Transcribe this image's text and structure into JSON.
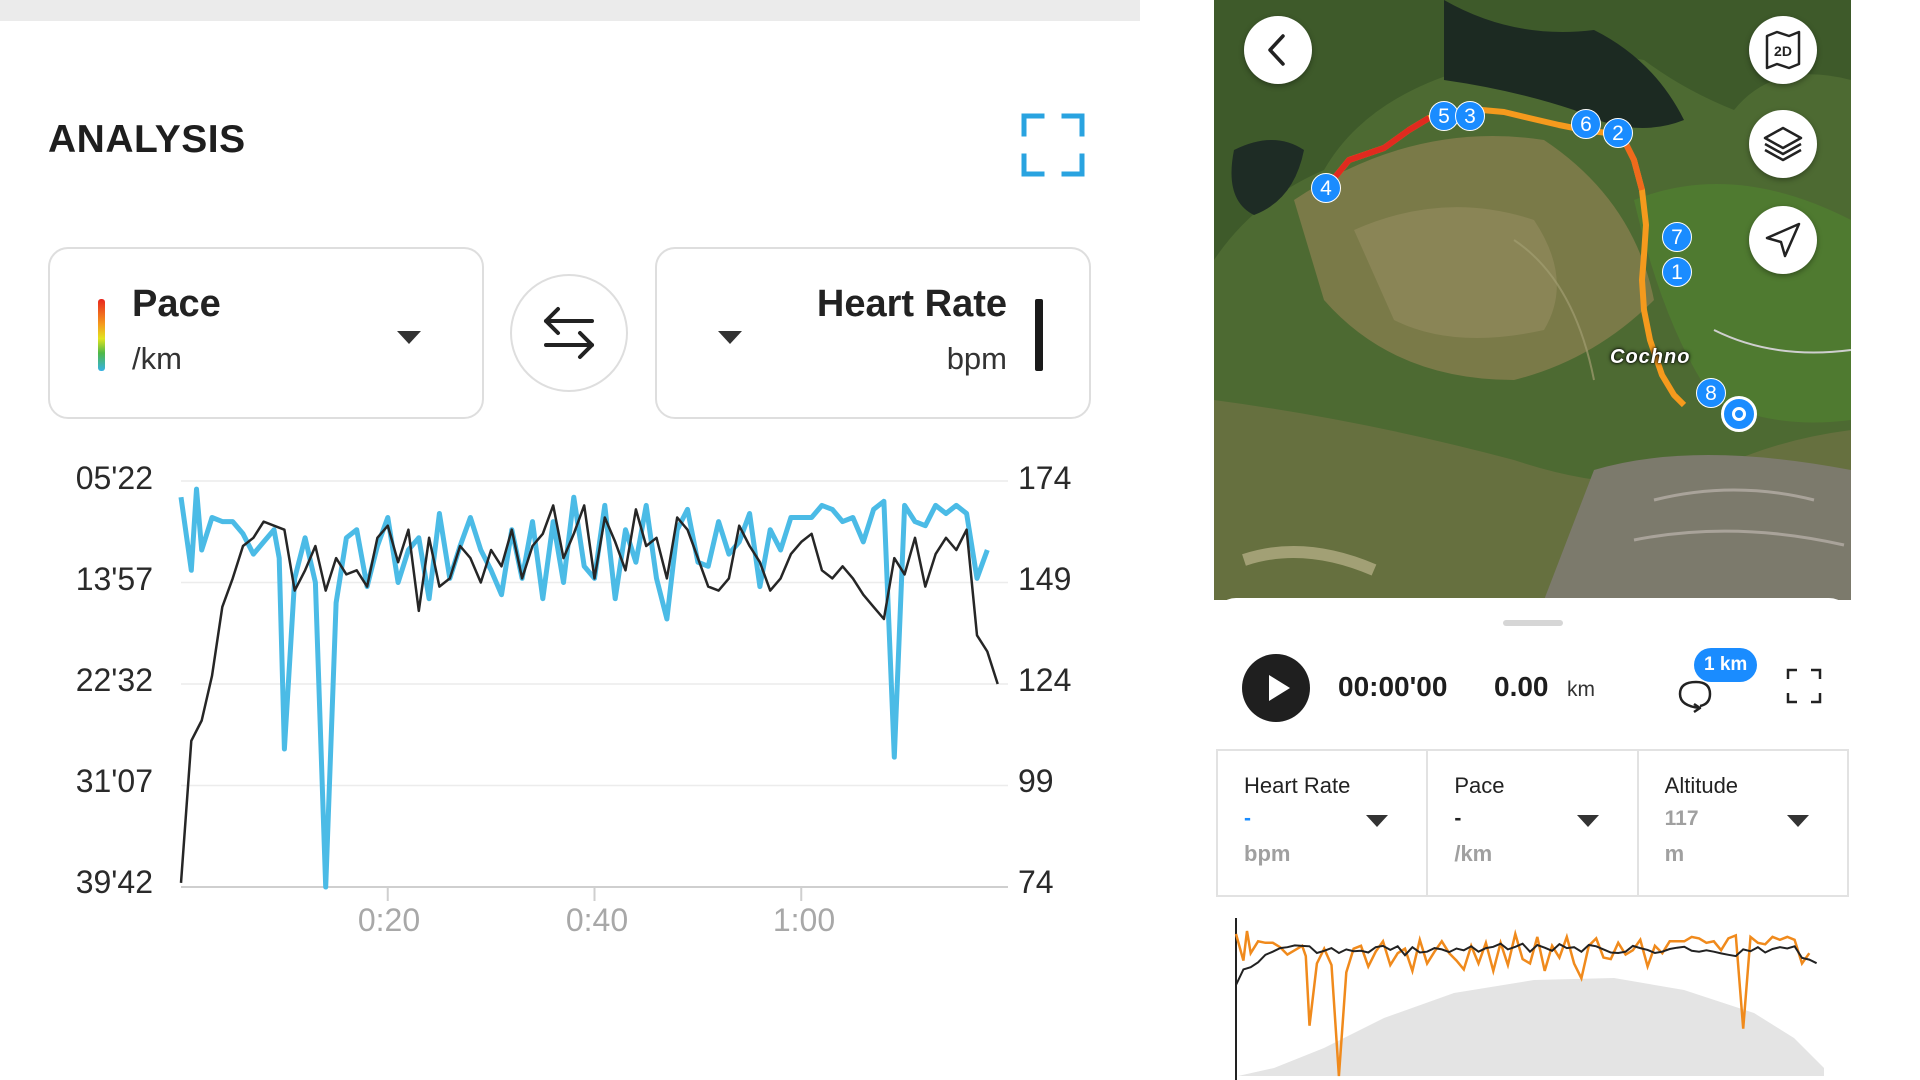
{
  "analysis": {
    "title": "ANALYSIS",
    "fullscreen_icon": "expand-icon"
  },
  "pace_selector": {
    "title": "Pace",
    "unit": "/km"
  },
  "hr_selector": {
    "title": "Heart Rate",
    "unit": "bpm"
  },
  "swap_icon": "swap-arrows-icon",
  "chart_data": {
    "type": "line",
    "title": "",
    "xlabel": "",
    "ylabel_left": "Pace (/km)",
    "ylabel_right": "Heart Rate (bpm)",
    "x_ticks": [
      "0:20",
      "0:40",
      "1:00"
    ],
    "y_ticks_left": [
      "05'22",
      "13'57",
      "22'32",
      "31'07",
      "39'42"
    ],
    "y_ticks_right": [
      "174",
      "149",
      "124",
      "99",
      "74"
    ],
    "xlim_minutes": [
      0,
      80
    ],
    "ylim_right": [
      74,
      174
    ],
    "grid": true,
    "series": [
      {
        "name": "Pace",
        "color": "#4bbbe6",
        "x": [
          0,
          1,
          1.5,
          2,
          3,
          4,
          5,
          6,
          7,
          8,
          9,
          9.5,
          10,
          11,
          12,
          13,
          14,
          15,
          16,
          17,
          18,
          19,
          20,
          21,
          22,
          23,
          24,
          25,
          26,
          27,
          28,
          29,
          30,
          31,
          32,
          33,
          34,
          35,
          36,
          37,
          38,
          39,
          40,
          41,
          42,
          43,
          44,
          45,
          46,
          47,
          48,
          49,
          50,
          51,
          52,
          53,
          54,
          55,
          56,
          57,
          58,
          59,
          60,
          61,
          62,
          63,
          64,
          65,
          66,
          67,
          68,
          69,
          70,
          71,
          72,
          73,
          74,
          75,
          76,
          77,
          78
        ],
        "values": [
          170,
          152,
          172,
          157,
          165,
          164,
          164,
          161,
          156,
          159,
          162,
          155,
          108,
          150,
          160,
          149,
          74,
          144,
          160,
          162,
          148,
          158,
          165,
          149,
          157,
          160,
          145,
          166,
          150,
          158,
          165,
          157,
          152,
          146,
          162,
          150,
          164,
          145,
          164,
          149,
          170,
          153,
          150,
          168,
          145,
          162,
          154,
          168,
          150,
          140,
          162,
          167,
          154,
          153,
          164,
          156,
          159,
          166,
          148,
          162,
          157,
          165,
          165,
          165,
          168,
          167,
          164,
          165,
          159,
          167,
          169,
          106,
          168,
          164,
          163,
          168,
          166,
          168,
          166,
          150,
          157
        ]
      },
      {
        "name": "Heart Rate",
        "color": "#262626",
        "x": [
          0,
          1,
          2,
          3,
          4,
          5,
          6,
          7,
          8,
          9,
          10,
          11,
          12,
          13,
          14,
          15,
          16,
          17,
          18,
          19,
          20,
          21,
          22,
          23,
          24,
          25,
          26,
          27,
          28,
          29,
          30,
          31,
          32,
          33,
          34,
          35,
          36,
          37,
          38,
          39,
          40,
          41,
          42,
          43,
          44,
          45,
          46,
          47,
          48,
          49,
          50,
          51,
          52,
          53,
          54,
          55,
          56,
          57,
          58,
          59,
          60,
          61,
          62,
          63,
          64,
          65,
          66,
          67,
          68,
          69,
          70,
          71,
          72,
          73,
          74,
          75,
          76,
          77,
          78,
          79
        ],
        "values": [
          75,
          110,
          115,
          126,
          143,
          150,
          158,
          160,
          164,
          163,
          162,
          147,
          152,
          158,
          147,
          155,
          151,
          152,
          148,
          160,
          163,
          154,
          162,
          142,
          160,
          148,
          150,
          158,
          155,
          149,
          157,
          153,
          162,
          150,
          158,
          161,
          168,
          155,
          161,
          168,
          150,
          165,
          159,
          152,
          167,
          158,
          160,
          150,
          165,
          162,
          155,
          148,
          147,
          150,
          163,
          158,
          154,
          147,
          150,
          156,
          159,
          161,
          152,
          150,
          153,
          150,
          146,
          143,
          140,
          155,
          151,
          160,
          148,
          156,
          160,
          157,
          162,
          136,
          132,
          124
        ]
      }
    ]
  },
  "map": {
    "back_icon": "chevron-left-icon",
    "view_2d_icon": "map-2d-icon",
    "view_2d_label": "2D",
    "layers_icon": "layers-icon",
    "locate_icon": "navigation-arrow-icon",
    "place_label": "Cochno",
    "lap_markers": [
      "5",
      "3",
      "6",
      "2",
      "4",
      "7",
      "1",
      "8"
    ]
  },
  "playback": {
    "play_icon": "play-icon",
    "time": "00:00'00",
    "distance": "0.00",
    "distance_unit": "km",
    "lap_icon": "lap-loop-icon",
    "lap_badge": "1 km",
    "fullscreen_icon": "expand-icon"
  },
  "metrics": [
    {
      "name": "Heart Rate",
      "value": "-",
      "value_color": "#1a8cff",
      "unit": "bpm"
    },
    {
      "name": "Pace",
      "value": "-",
      "value_color": "#222222",
      "unit": "/km"
    },
    {
      "name": "Altitude",
      "value": "117",
      "value_color": "#a0a0a0",
      "unit": "m"
    }
  ]
}
